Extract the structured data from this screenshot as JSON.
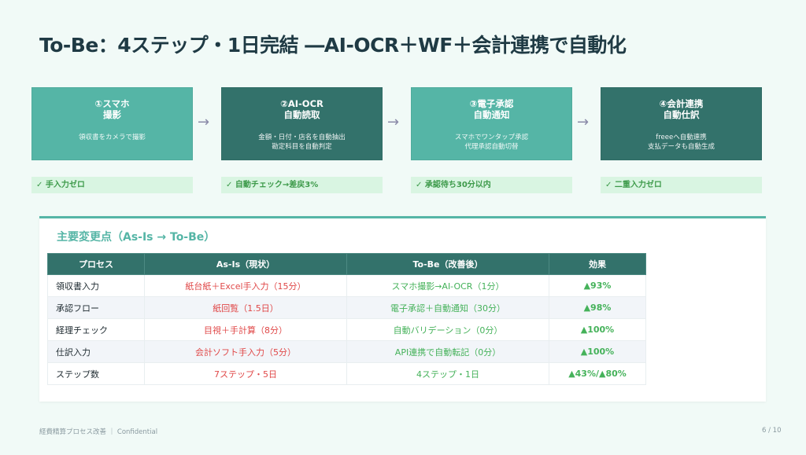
{
  "title": "To-Be：4ステップ・1日完結 ―AI-OCR＋WF＋会計連携で自動化",
  "steps": [
    {
      "heading": "①スマホ\n撮影",
      "desc": "領収書をカメラで撮影",
      "check": "✓ 手入力ゼロ",
      "style": "light"
    },
    {
      "heading": "②AI-OCR\n自動読取",
      "desc": "金額・日付・店名を自動抽出\n勘定科目を自動判定",
      "check": "✓ 自動チェック→差戻3%",
      "style": "dark"
    },
    {
      "heading": "③電子承認\n自動通知",
      "desc": "スマホでワンタップ承認\n代理承認自動切替",
      "check": "✓ 承認待ち30分以内",
      "style": "light"
    },
    {
      "heading": "④会計連携\n自動仕訳",
      "desc": "freeeへ自動連携\n支払データも自動生成",
      "check": "✓ 二重入力ゼロ",
      "style": "dark"
    }
  ],
  "arrow": "→",
  "panel": {
    "title": "主要変更点（As-Is → To-Be）",
    "headers": [
      "プロセス",
      "As-Is（現状）",
      "To-Be（改善後）",
      "効果"
    ],
    "rows": [
      [
        "領収書入力",
        "紙台紙＋Excel手入力（15分）",
        "スマホ撮影→AI-OCR（1分）",
        "▲93%"
      ],
      [
        "承認フロー",
        "紙回覧（1.5日）",
        "電子承認＋自動通知（30分）",
        "▲98%"
      ],
      [
        "経理チェック",
        "目視＋手計算（8分）",
        "自動バリデーション（0分）",
        "▲100%"
      ],
      [
        "仕訳入力",
        "会計ソフト手入力（5分）",
        "API連携で自動転記（0分）",
        "▲100%"
      ],
      [
        "ステップ数",
        "7ステップ・5日",
        "4ステップ・1日",
        "▲43%/▲80%"
      ]
    ]
  },
  "footer": {
    "left": "経費精算プロセス改善 ｜ Confidential",
    "page": "6 / 10"
  },
  "colors": {
    "teal_light": "#55b5a6",
    "teal_dark": "#33726b",
    "red": "#e04848",
    "green": "#45b25a"
  }
}
